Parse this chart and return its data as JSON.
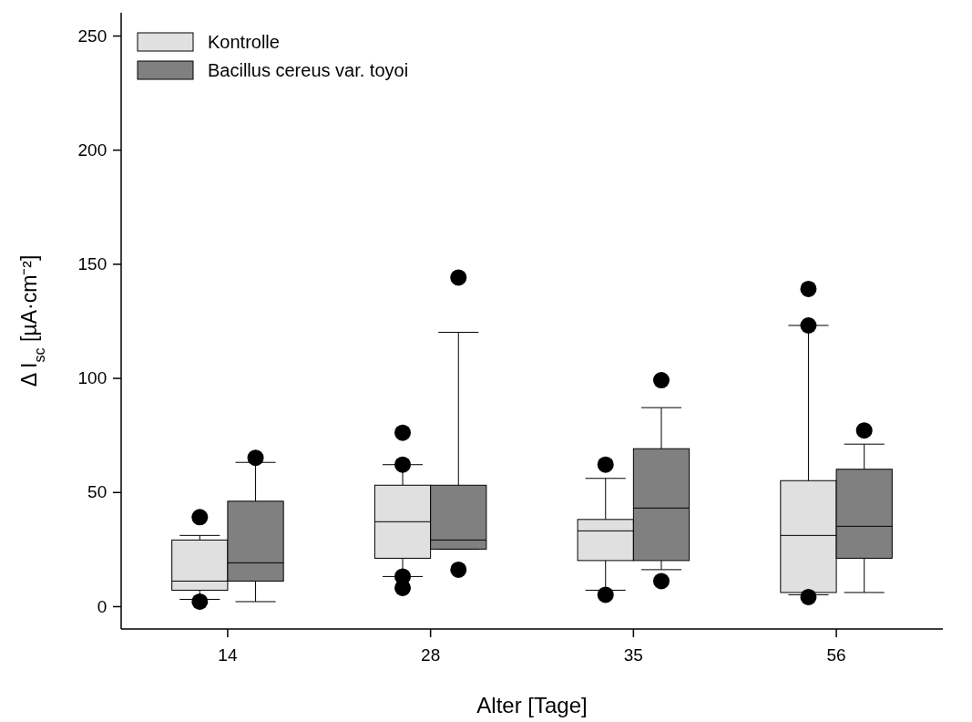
{
  "chart_data": {
    "type": "box",
    "xlabel": "Alter [Tage]",
    "ylabel": "Δ I$_{sc}$ [µA·cm⁻²]",
    "categories": [
      "14",
      "28",
      "35",
      "56"
    ],
    "ylim": [
      -10,
      260
    ],
    "yticks": [
      0,
      50,
      100,
      150,
      200,
      250
    ],
    "legend": "top left",
    "grid": false,
    "series": [
      {
        "name": "Kontrolle",
        "color": "#e0e0e0",
        "boxes": [
          {
            "low": 3,
            "q1": 7,
            "median": 11,
            "q3": 29,
            "high": 31,
            "outliers": [
              2,
              39
            ]
          },
          {
            "low": 13,
            "q1": 21,
            "median": 37,
            "q3": 53,
            "high": 62,
            "outliers": [
              8,
              13,
              62,
              76
            ]
          },
          {
            "low": 7,
            "q1": 20,
            "median": 33,
            "q3": 38,
            "high": 56,
            "outliers": [
              5,
              62
            ]
          },
          {
            "low": 5,
            "q1": 6,
            "median": 31,
            "q3": 55,
            "high": 123,
            "outliers": [
              4,
              123,
              139
            ]
          }
        ]
      },
      {
        "name": "Bacillus cereus var. toyoi",
        "color": "#808080",
        "boxes": [
          {
            "low": 2,
            "q1": 11,
            "median": 19,
            "q3": 46,
            "high": 63,
            "outliers": [
              65
            ]
          },
          {
            "low": 25,
            "q1": 25,
            "median": 29,
            "q3": 53,
            "high": 120,
            "outliers": [
              16,
              144
            ]
          },
          {
            "low": 16,
            "q1": 20,
            "median": 43,
            "q3": 69,
            "high": 87,
            "outliers": [
              11,
              99
            ]
          },
          {
            "low": 6,
            "q1": 21,
            "median": 35,
            "q3": 60,
            "high": 71,
            "outliers": [
              77
            ]
          }
        ]
      }
    ]
  }
}
